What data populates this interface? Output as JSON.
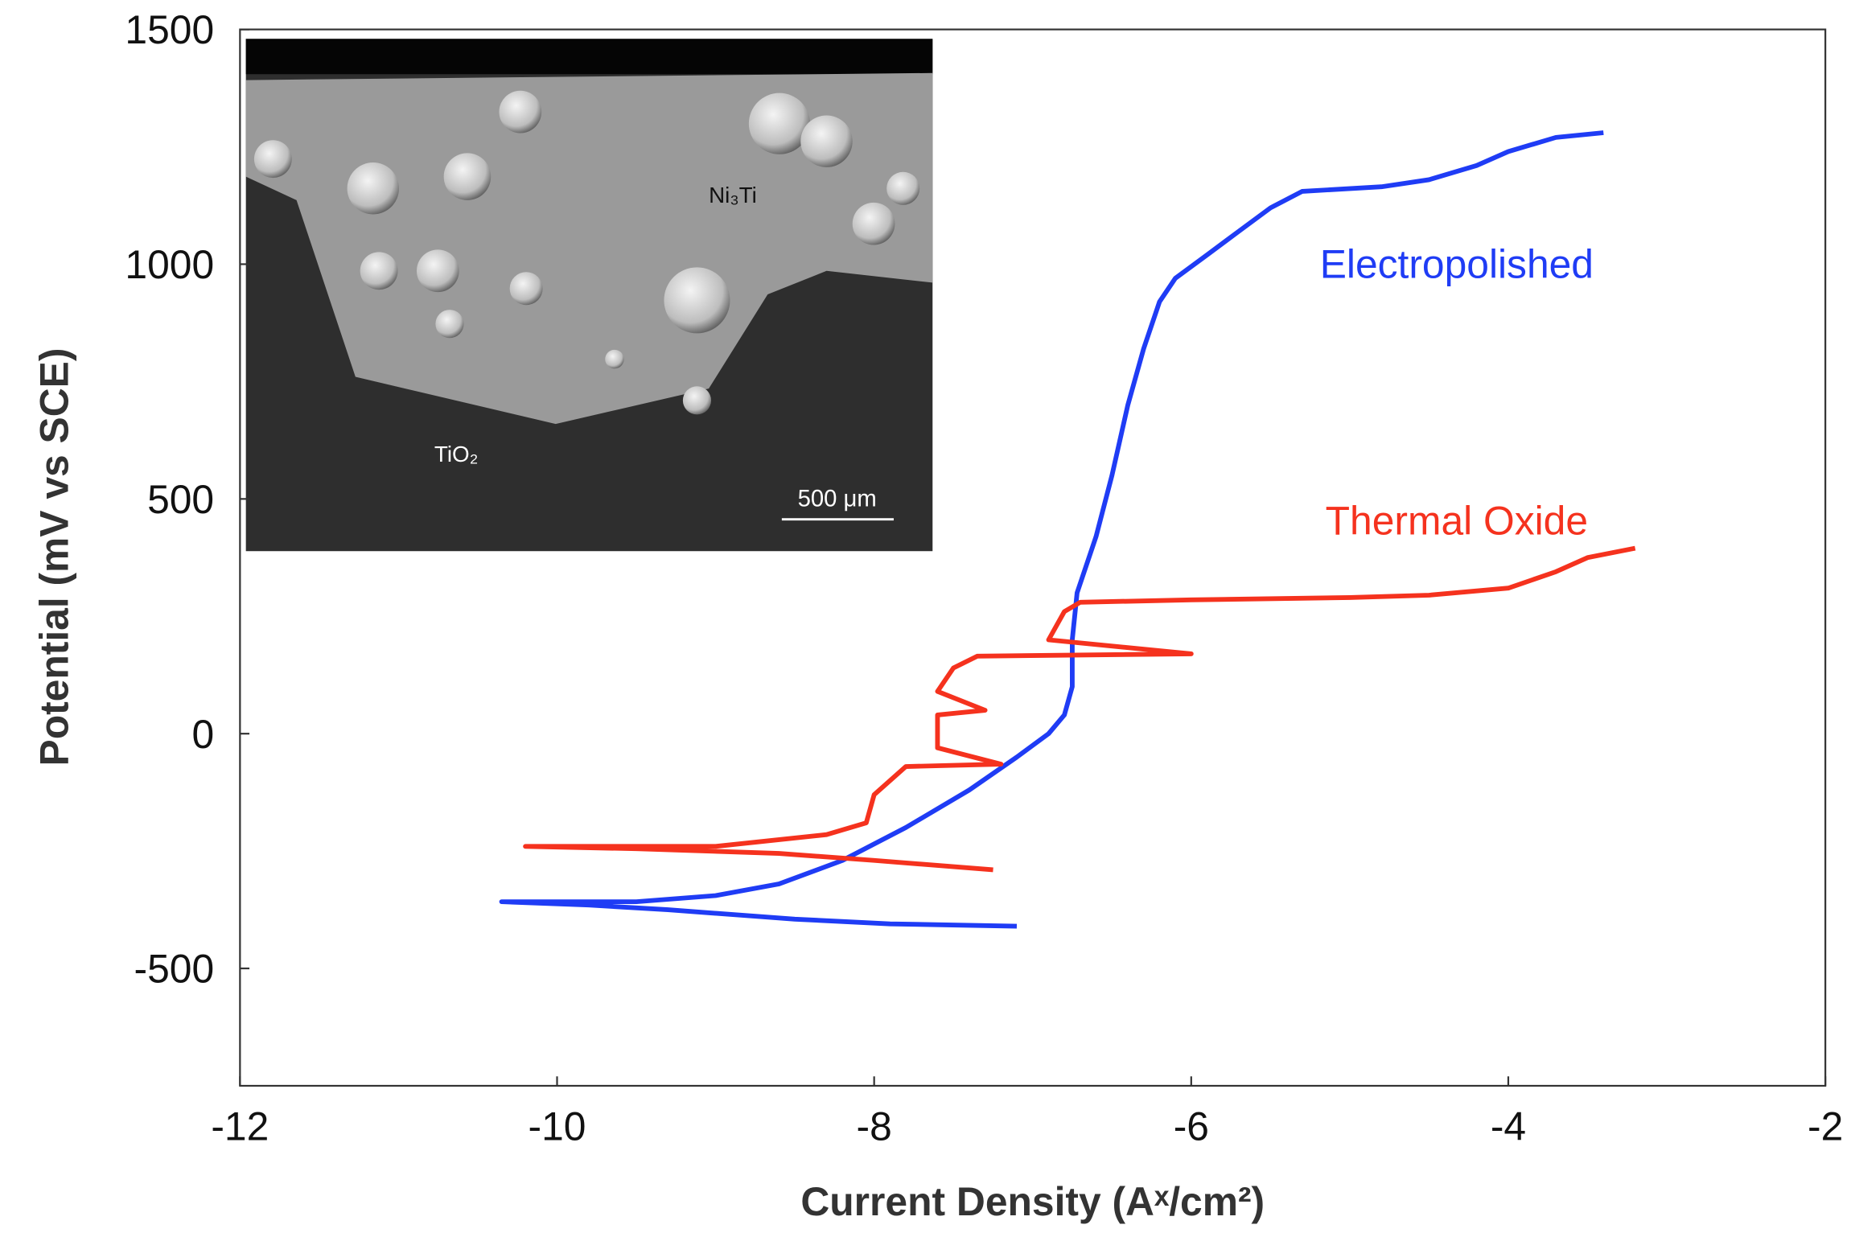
{
  "chart_data": {
    "type": "line",
    "x_label": "Current Density (Aˣ/cm²)",
    "y_label": "Potential (mV vs SCE)",
    "xlim": [
      -12,
      -2
    ],
    "xticks": [
      -12,
      -10,
      -8,
      -6,
      -4,
      -2
    ],
    "ylim": [
      -750,
      1500
    ],
    "yticks": [
      -500,
      0,
      500,
      1000,
      1500
    ],
    "annotations": [
      "Ni₃Ti",
      "TiO₂",
      "500 μm"
    ],
    "series": [
      {
        "name": "Electropolished",
        "color": "#1f3cf5",
        "x": [
          -7.1,
          -7.9,
          -8.5,
          -9.3,
          -9.8,
          -10.35,
          -9.5,
          -9.0,
          -8.6,
          -8.2,
          -7.8,
          -7.4,
          -7.1,
          -6.9,
          -6.8,
          -6.75,
          -6.75,
          -6.72,
          -6.6,
          -6.5,
          -6.4,
          -6.3,
          -6.2,
          -6.1,
          -5.9,
          -5.7,
          -5.5,
          -5.3,
          -4.8,
          -4.5,
          -4.2,
          -4.0,
          -3.7,
          -3.4
        ],
        "values": [
          -410,
          -405,
          -395,
          -375,
          -365,
          -358,
          -358,
          -345,
          -320,
          -270,
          -200,
          -120,
          -50,
          0,
          40,
          100,
          200,
          300,
          420,
          550,
          700,
          820,
          920,
          970,
          1020,
          1070,
          1120,
          1155,
          1165,
          1180,
          1210,
          1240,
          1270,
          1280
        ]
      },
      {
        "name": "Thermal Oxide",
        "color": "#f5321e",
        "x": [
          -7.25,
          -8.0,
          -8.6,
          -9.5,
          -10.2,
          -9.0,
          -8.3,
          -8.05,
          -8.0,
          -7.8,
          -7.2,
          -7.6,
          -7.6,
          -7.3,
          -7.6,
          -7.5,
          -7.35,
          -6.0,
          -6.9,
          -6.8,
          -6.7,
          -6.0,
          -5.0,
          -4.5,
          -4.0,
          -3.7,
          -3.5,
          -3.2
        ],
        "values": [
          -290,
          -270,
          -255,
          -245,
          -240,
          -240,
          -215,
          -190,
          -130,
          -70,
          -65,
          -30,
          40,
          50,
          90,
          140,
          165,
          170,
          200,
          260,
          280,
          285,
          290,
          295,
          310,
          345,
          375,
          395
        ]
      }
    ]
  }
}
